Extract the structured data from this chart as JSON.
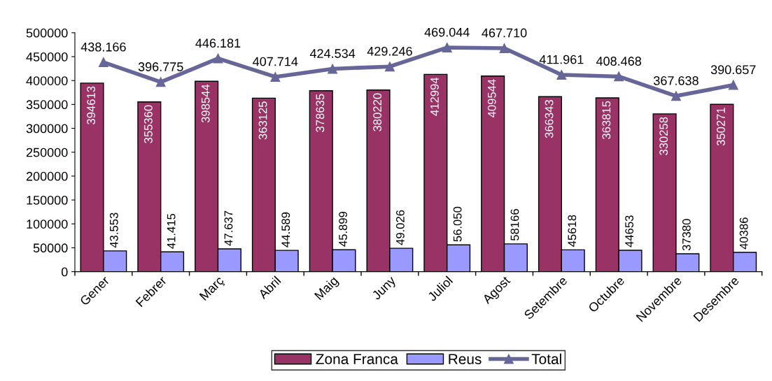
{
  "chart_data": {
    "type": "bar",
    "categories": [
      "Gener",
      "Febrer",
      "Març",
      "Abril",
      "Maig",
      "Juny",
      "Juliol",
      "Agost",
      "Setembre",
      "Octubre",
      "Novembre",
      "Desembre"
    ],
    "series": [
      {
        "name": "Zona Franca",
        "color": "#993366",
        "values": [
          394613,
          355360,
          398544,
          363125,
          378635,
          380220,
          412994,
          409544,
          366343,
          363815,
          330258,
          350271
        ],
        "value_labels": [
          "394613",
          "355360",
          "398544",
          "363125",
          "378635",
          "380220",
          "412994",
          "409544",
          "366343",
          "363815",
          "330258",
          "350271"
        ]
      },
      {
        "name": "Reus",
        "color": "#9999ff",
        "values": [
          43553,
          41415,
          47637,
          44589,
          45899,
          49026,
          56050,
          58166,
          45618,
          44653,
          37380,
          40386
        ],
        "value_labels": [
          "43.553",
          "41.415",
          "47.637",
          "44.589",
          "45.899",
          "49.026",
          "56.050",
          "58166",
          "45618",
          "44653",
          "37380",
          "40386"
        ]
      },
      {
        "name": "Total",
        "type": "line",
        "color": "#666699",
        "values": [
          438166,
          396775,
          446181,
          407714,
          424534,
          429246,
          469044,
          467710,
          411961,
          408468,
          367638,
          390657
        ],
        "value_labels": [
          "438.166",
          "396.775",
          "446.181",
          "407.714",
          "424.534",
          "429.246",
          "469.044",
          "467.710",
          "411.961",
          "408.468",
          "367.638",
          "390.657"
        ]
      }
    ],
    "ylim": [
      0,
      500000
    ],
    "yticks": [
      0,
      50000,
      100000,
      150000,
      200000,
      250000,
      300000,
      350000,
      400000,
      450000,
      500000
    ],
    "legend": "bottom",
    "marker": "triangle",
    "line_style": "solid"
  }
}
